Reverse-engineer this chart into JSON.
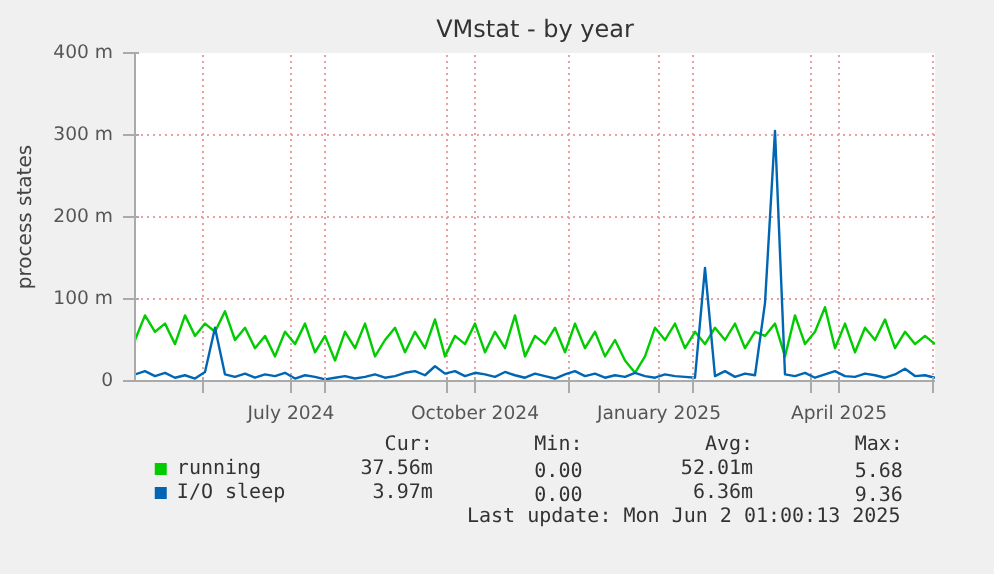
{
  "chart_data": {
    "type": "line",
    "title": "VMstat - by year",
    "ylabel": "process states",
    "x": [
      "2024-04-28",
      "2024-05-03",
      "2024-05-08",
      "2024-05-13",
      "2024-05-18",
      "2024-05-23",
      "2024-05-28",
      "2024-06-02",
      "2024-06-07",
      "2024-06-12",
      "2024-06-17",
      "2024-06-22",
      "2024-06-27",
      "2024-07-02",
      "2024-07-07",
      "2024-07-12",
      "2024-07-17",
      "2024-07-22",
      "2024-07-27",
      "2024-08-01",
      "2024-08-06",
      "2024-08-11",
      "2024-08-16",
      "2024-08-21",
      "2024-08-26",
      "2024-08-31",
      "2024-09-05",
      "2024-09-10",
      "2024-09-15",
      "2024-09-20",
      "2024-09-25",
      "2024-09-30",
      "2024-10-05",
      "2024-10-10",
      "2024-10-15",
      "2024-10-20",
      "2024-10-25",
      "2024-10-30",
      "2024-11-04",
      "2024-11-09",
      "2024-11-14",
      "2024-11-19",
      "2024-11-24",
      "2024-11-29",
      "2024-12-04",
      "2024-12-09",
      "2024-12-14",
      "2024-12-19",
      "2024-12-24",
      "2024-12-29",
      "2025-01-03",
      "2025-01-08",
      "2025-01-13",
      "2025-01-18",
      "2025-01-23",
      "2025-01-28",
      "2025-02-02",
      "2025-02-07",
      "2025-02-12",
      "2025-02-17",
      "2025-02-22",
      "2025-02-27",
      "2025-03-04",
      "2025-03-09",
      "2025-03-14",
      "2025-03-19",
      "2025-03-24",
      "2025-03-29",
      "2025-04-03",
      "2025-04-08",
      "2025-04-13",
      "2025-04-18",
      "2025-04-23",
      "2025-04-28",
      "2025-05-03",
      "2025-05-08",
      "2025-05-13",
      "2025-05-18",
      "2025-05-23",
      "2025-05-28",
      "2025-06-02"
    ],
    "series": [
      {
        "name": "running",
        "color": "#00cc00",
        "values": [
          50,
          80,
          60,
          70,
          45,
          80,
          55,
          70,
          60,
          85,
          50,
          65,
          40,
          55,
          30,
          60,
          45,
          70,
          35,
          55,
          25,
          60,
          40,
          70,
          30,
          50,
          65,
          35,
          60,
          40,
          75,
          30,
          55,
          45,
          70,
          35,
          60,
          40,
          80,
          30,
          55,
          45,
          65,
          35,
          70,
          40,
          60,
          30,
          50,
          25,
          10,
          30,
          65,
          50,
          70,
          40,
          60,
          45,
          65,
          50,
          70,
          40,
          60,
          55,
          70,
          30,
          80,
          45,
          60,
          90,
          40,
          70,
          35,
          65,
          50,
          75,
          40,
          60,
          45,
          55,
          45
        ]
      },
      {
        "name": "I/O sleep",
        "color": "#0066b3",
        "values": [
          8,
          12,
          6,
          10,
          4,
          7,
          3,
          11,
          65,
          8,
          5,
          9,
          4,
          8,
          6,
          10,
          3,
          7,
          5,
          2,
          4,
          6,
          3,
          5,
          8,
          4,
          6,
          10,
          12,
          7,
          18,
          9,
          12,
          6,
          10,
          8,
          5,
          11,
          7,
          4,
          9,
          6,
          3,
          8,
          12,
          6,
          9,
          4,
          7,
          5,
          10,
          6,
          4,
          8,
          6,
          5,
          4,
          138,
          6,
          12,
          5,
          9,
          7,
          95,
          305,
          8,
          6,
          10,
          4,
          8,
          12,
          6,
          5,
          9,
          7,
          4,
          8,
          15,
          6,
          7,
          4
        ]
      }
    ],
    "xlim": [
      "2024-04-28",
      "2025-06-02"
    ],
    "xticks": [
      {
        "value": "2024-06-01",
        "label": null
      },
      {
        "value": "2024-07-15",
        "label": "July 2024"
      },
      {
        "value": "2024-08-01",
        "label": null
      },
      {
        "value": "2024-10-01",
        "label": null
      },
      {
        "value": "2024-10-15",
        "label": "October 2024"
      },
      {
        "value": "2024-12-01",
        "label": null
      },
      {
        "value": "2025-01-15",
        "label": "January 2025"
      },
      {
        "value": "2025-02-01",
        "label": null
      },
      {
        "value": "2025-04-01",
        "label": null
      },
      {
        "value": "2025-04-15",
        "label": "April 2025"
      },
      {
        "value": "2025-06-01",
        "label": null
      }
    ],
    "ylim": [
      0,
      400
    ],
    "yticks": [
      0,
      {
        "value": 100,
        "label": "100 m"
      },
      {
        "value": 200,
        "label": "200 m"
      },
      {
        "value": 300,
        "label": "300 m"
      },
      {
        "value": 400,
        "label": "400 m"
      }
    ],
    "grid": true,
    "legend": "bottom",
    "annotations": [
      "Cur:",
      "Min:",
      "Avg:",
      "Max:",
      "37.56m",
      "0.00",
      "52.01m",
      "5.68",
      "3.97m",
      "0.00",
      "6.36m",
      "9.36",
      "Last update: Mon Jun  2 01:00:13 2025"
    ]
  }
}
